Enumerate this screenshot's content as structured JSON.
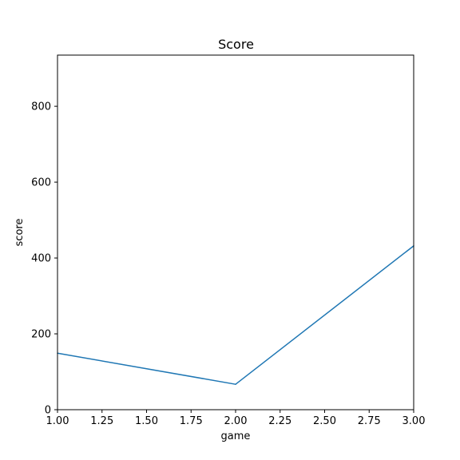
{
  "chart_data": {
    "type": "line",
    "title": "Score",
    "xlabel": "game",
    "ylabel": "score",
    "xlim": [
      1.0,
      3.0
    ],
    "ylim": [
      0,
      935
    ],
    "xticks": [
      "1.00",
      "1.25",
      "1.50",
      "1.75",
      "2.00",
      "2.25",
      "2.50",
      "2.75",
      "3.00"
    ],
    "yticks": [
      "0",
      "200",
      "400",
      "600",
      "800"
    ],
    "grid": false,
    "series": [
      {
        "x": [
          1,
          2,
          3
        ],
        "y": [
          149,
          67,
          432
        ],
        "color": "#1f77b4"
      }
    ]
  }
}
